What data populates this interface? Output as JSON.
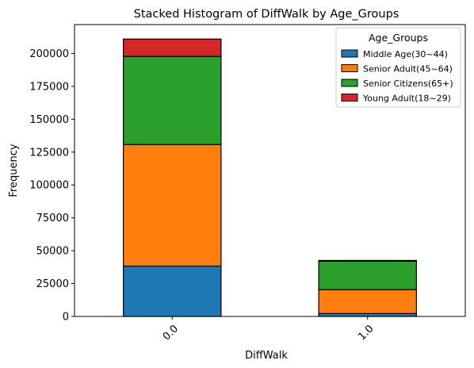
{
  "chart_data": {
    "type": "bar",
    "stacked": true,
    "title": "Stacked Histogram of DiffWalk by Age_Groups",
    "xlabel": "DiffWalk",
    "ylabel": "Frequency",
    "categories": [
      "0.0",
      "1.0"
    ],
    "ylim": [
      0,
      222000
    ],
    "yticks": [
      0,
      25000,
      50000,
      75000,
      100000,
      125000,
      150000,
      175000,
      200000
    ],
    "ytick_labels": [
      "0",
      "25000",
      "50000",
      "75000",
      "100000",
      "125000",
      "150000",
      "175000",
      "200000"
    ],
    "legend": {
      "title": "Age_Groups",
      "placement": "top-right"
    },
    "series": [
      {
        "name": "Middle Age(30~44)",
        "color": "#1f77b4",
        "values": [
          38300,
          2200
        ]
      },
      {
        "name": "Senior Adult(45~64)",
        "color": "#ff7f0e",
        "values": [
          92500,
          18200
        ]
      },
      {
        "name": "Senior Citizens(65+)",
        "color": "#2ca02c",
        "values": [
          67000,
          21600
        ]
      },
      {
        "name": "Young Adult(18~29)",
        "color": "#d62728",
        "values": [
          13200,
          600
        ]
      }
    ]
  }
}
